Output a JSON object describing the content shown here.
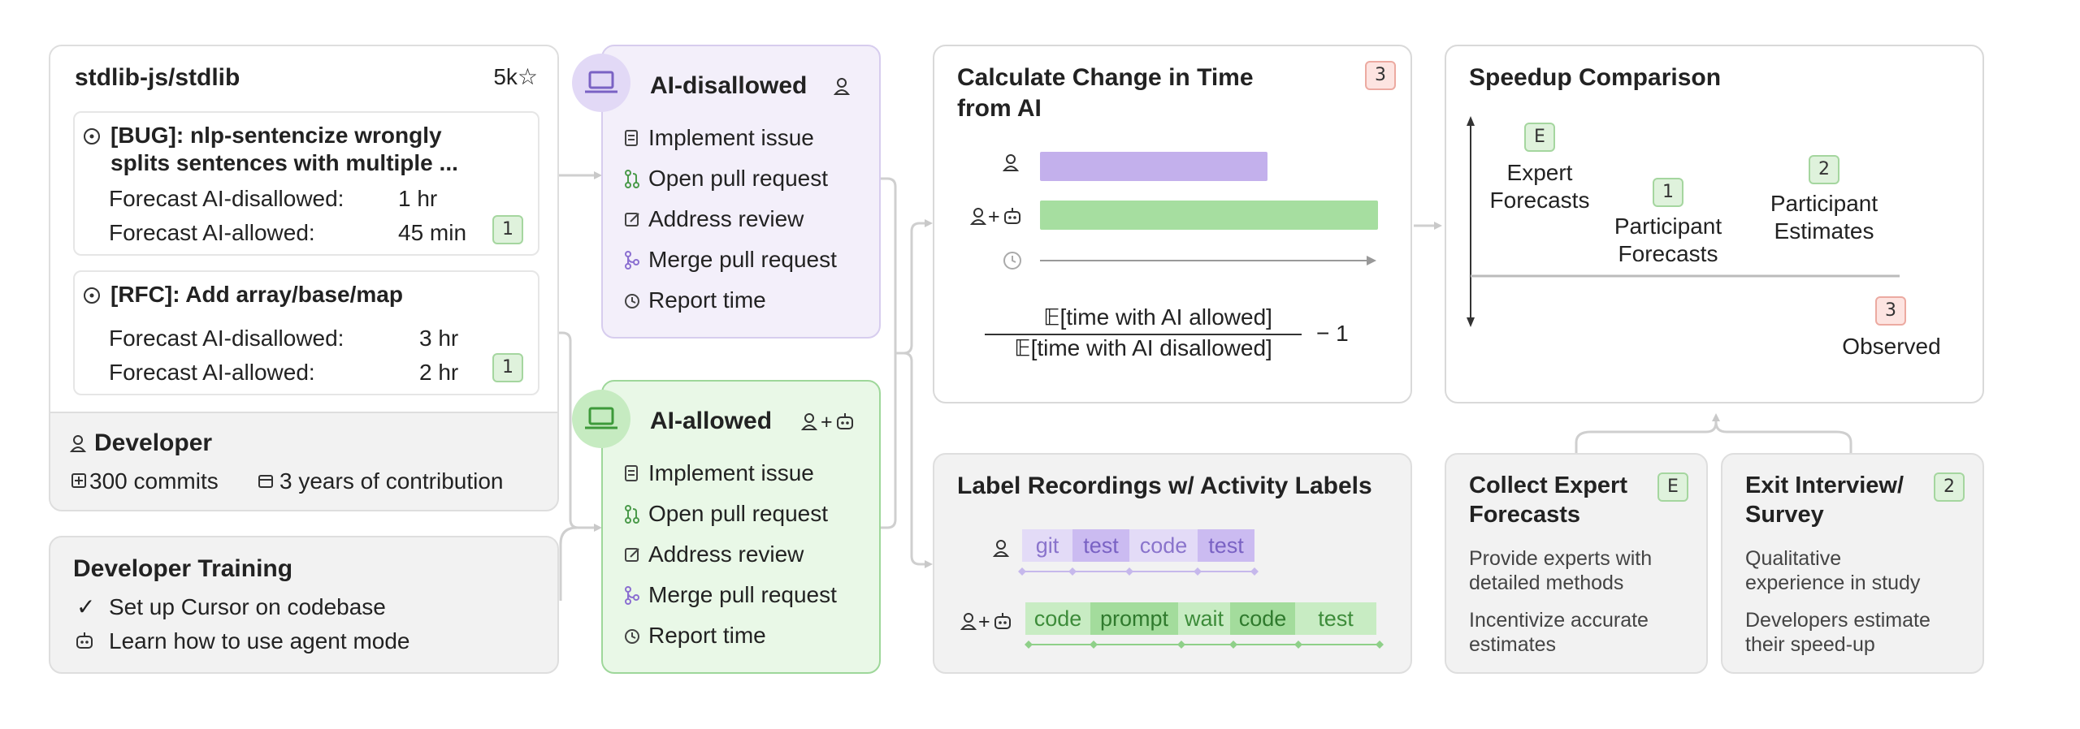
{
  "repo": {
    "name": "stdlib-js/stdlib",
    "stars": "5k☆",
    "issues": [
      {
        "title_line1": "[BUG]: nlp-sentencize wrongly",
        "title_line2": "splits sentences with multiple ...",
        "forecast_disallowed_label": "Forecast AI-disallowed:",
        "forecast_disallowed_value": "1 hr",
        "forecast_allowed_label": "Forecast AI-allowed:",
        "forecast_allowed_value": "45 min",
        "badge": "1"
      },
      {
        "title_line1": "[RFC]: Add array/base/map",
        "forecast_disallowed_label": "Forecast AI-disallowed:",
        "forecast_disallowed_value": "3 hr",
        "forecast_allowed_label": "Forecast AI-allowed:",
        "forecast_allowed_value": "2 hr",
        "badge": "1"
      }
    ],
    "developer": {
      "title": "Developer",
      "commits": "300 commits",
      "years": "3 years of contribution"
    }
  },
  "training": {
    "title": "Developer Training",
    "items": [
      "Set up Cursor on codebase",
      "Learn how to use agent mode"
    ]
  },
  "conditions": [
    {
      "title": "AI-disallowed",
      "steps": [
        "Implement issue",
        "Open pull request",
        "Address review",
        "Merge pull request",
        "Report time"
      ]
    },
    {
      "title": "AI-allowed",
      "steps": [
        "Implement issue",
        "Open pull request",
        "Address review",
        "Merge pull request",
        "Report time"
      ]
    }
  ],
  "change_card": {
    "title_line1": "Calculate Change in Time",
    "title_line2": "from AI",
    "badge": "3",
    "plus": "+",
    "numerator": "𝔼[time with AI allowed]",
    "denominator": "𝔼[time with AI disallowed]",
    "minus_one": "−  1"
  },
  "speedup": {
    "title": "Speedup Comparison",
    "expert_badge": "E",
    "expert_line1": "Expert",
    "expert_line2": "Forecasts",
    "participant_forecast_badge": "1",
    "participant_forecast_line1": "Participant",
    "participant_forecast_line2": "Forecasts",
    "participant_estimate_badge": "2",
    "participant_estimate_line1": "Participant",
    "participant_estimate_line2": "Estimates",
    "observed_badge": "3",
    "observed_label": "Observed"
  },
  "label_card": {
    "title": "Label Recordings w/ Activity Labels",
    "plus": "+",
    "row1": [
      "git",
      "test",
      "code",
      "test"
    ],
    "row2": [
      "code",
      "prompt",
      "wait",
      "code",
      "test"
    ]
  },
  "collect": {
    "title_line1": "Collect Expert",
    "title_line2": "Forecasts",
    "badge": "E",
    "p1_line1": "Provide experts with",
    "p1_line2": "detailed methods",
    "p2_line1": "Incentivize accurate",
    "p2_line2": "estimates"
  },
  "exit": {
    "title_line1": "Exit Interview/",
    "title_line2": "Survey",
    "badge": "2",
    "p1_line1": "Qualitative",
    "p1_line2": "experience in study",
    "p2_line1": "Developers estimate",
    "p2_line2": "their speed-up"
  },
  "colors": {
    "purple_bar": "#c3b0ec",
    "green_bar": "#a6dea0",
    "purple_chip": "#e3dbf7",
    "purple_chip_dark": "#cbbbf1",
    "green_chip": "#c8ecc3",
    "green_chip_dark": "#a3dc9c"
  }
}
